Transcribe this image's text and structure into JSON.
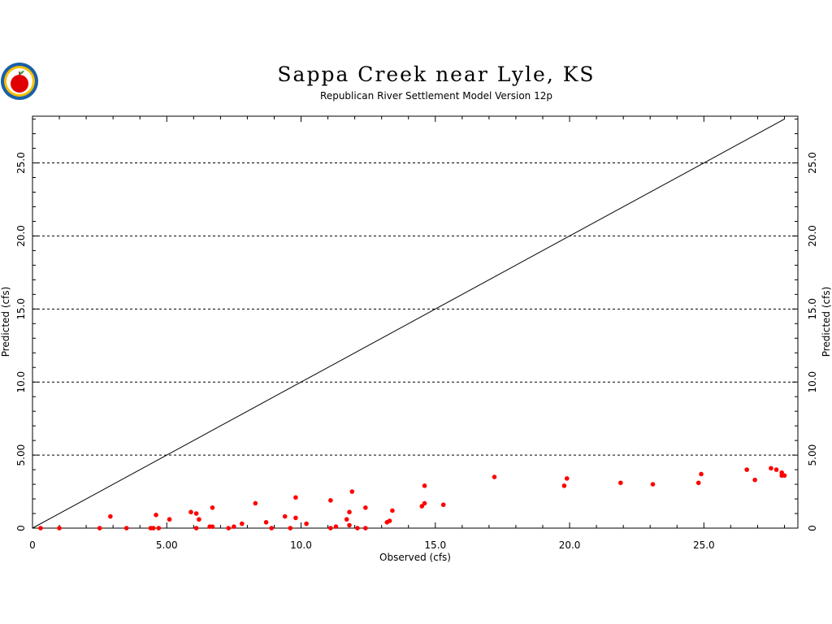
{
  "chart_data": {
    "type": "scatter",
    "title": "Sappa  Creek  near  Lyle,  KS",
    "subtitle": "Republican River Settlement Model Version 12p",
    "xlabel": "Observed (cfs)",
    "ylabel": "Predicted (cfs)",
    "xlim": [
      0,
      28.5
    ],
    "ylim": [
      0,
      28.2
    ],
    "x_ticks": [
      0,
      5,
      10,
      15,
      20,
      25
    ],
    "x_tick_labels": [
      "0",
      "5.00",
      "10.0",
      "15.0",
      "20.0",
      "25.0"
    ],
    "y_ticks": [
      0,
      5,
      10,
      15,
      20,
      25
    ],
    "y_tick_labels": [
      "0",
      "5.00",
      "10.0",
      "15.0",
      "20.0",
      "25.0"
    ],
    "grid": "horizontal dashed at major y ticks",
    "reference_line": {
      "from": [
        0,
        0
      ],
      "to": [
        28,
        28
      ],
      "color": "#000000"
    },
    "point_color": "#ff0000",
    "points": [
      [
        0.3,
        0.0
      ],
      [
        1.0,
        0.0
      ],
      [
        2.5,
        0.0
      ],
      [
        2.9,
        0.8
      ],
      [
        3.5,
        0.0
      ],
      [
        4.4,
        0.0
      ],
      [
        4.5,
        0.0
      ],
      [
        4.6,
        0.9
      ],
      [
        4.7,
        0.0
      ],
      [
        5.1,
        0.6
      ],
      [
        5.9,
        1.1
      ],
      [
        6.1,
        1.0
      ],
      [
        6.1,
        0.0
      ],
      [
        6.2,
        0.6
      ],
      [
        6.6,
        0.1
      ],
      [
        6.7,
        0.1
      ],
      [
        6.7,
        1.4
      ],
      [
        7.3,
        0.0
      ],
      [
        7.5,
        0.1
      ],
      [
        7.8,
        0.3
      ],
      [
        8.3,
        1.7
      ],
      [
        8.7,
        0.4
      ],
      [
        8.9,
        0.0
      ],
      [
        9.4,
        0.8
      ],
      [
        9.6,
        0.0
      ],
      [
        9.8,
        2.1
      ],
      [
        9.8,
        0.7
      ],
      [
        10.2,
        0.3
      ],
      [
        11.1,
        1.9
      ],
      [
        11.1,
        0.0
      ],
      [
        11.3,
        0.1
      ],
      [
        11.7,
        0.6
      ],
      [
        11.8,
        1.1
      ],
      [
        11.8,
        0.2
      ],
      [
        11.9,
        2.5
      ],
      [
        12.1,
        0.0
      ],
      [
        12.4,
        1.4
      ],
      [
        12.4,
        0.0
      ],
      [
        13.2,
        0.4
      ],
      [
        13.3,
        0.5
      ],
      [
        13.4,
        1.2
      ],
      [
        14.5,
        1.5
      ],
      [
        14.6,
        2.9
      ],
      [
        14.6,
        1.7
      ],
      [
        15.3,
        1.6
      ],
      [
        17.2,
        3.5
      ],
      [
        19.8,
        2.9
      ],
      [
        19.9,
        3.4
      ],
      [
        21.9,
        3.1
      ],
      [
        23.1,
        3.0
      ],
      [
        24.8,
        3.1
      ],
      [
        24.9,
        3.7
      ],
      [
        26.6,
        4.0
      ],
      [
        26.9,
        3.3
      ],
      [
        27.5,
        4.1
      ],
      [
        27.7,
        4.0
      ],
      [
        27.9,
        3.8
      ],
      [
        27.9,
        3.6
      ],
      [
        28.0,
        3.6
      ]
    ]
  },
  "logo": {
    "name": "apple seal logo",
    "colors": [
      "#1a5fa8",
      "#f5c000",
      "#e00000",
      "#2a8a2a"
    ]
  }
}
